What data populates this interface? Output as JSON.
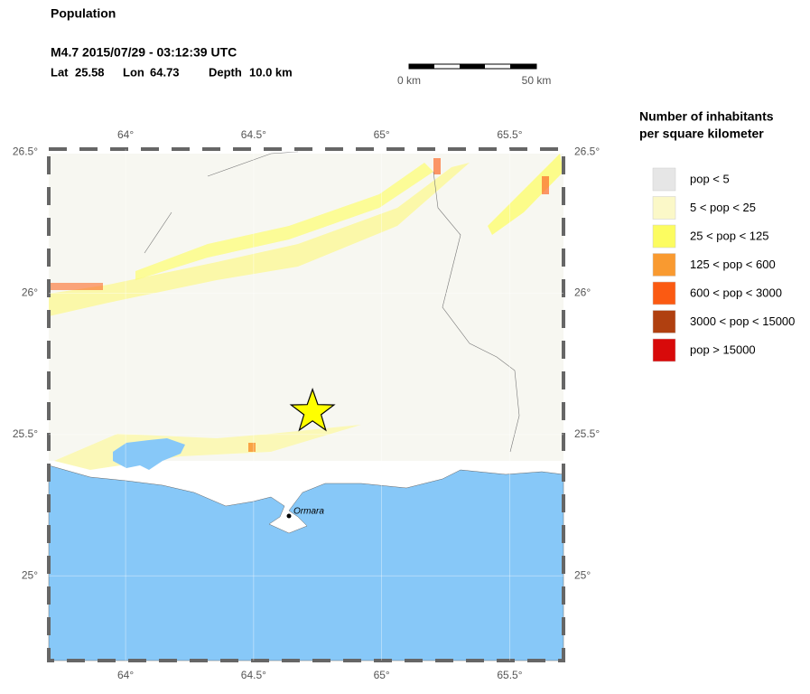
{
  "header": {
    "title": "Population",
    "event": "M4.7  2015/07/29 - 03:12:39 UTC",
    "lat_label": "Lat",
    "lat": 25.58,
    "lon_label": "Lon",
    "lon": 64.73,
    "depth_label": "Depth",
    "depth": "10.0 km"
  },
  "scale_bar": {
    "start": "0 km",
    "end": "50 km"
  },
  "map": {
    "xlim": [
      63.7,
      65.71
    ],
    "ylim": [
      24.7,
      26.51
    ],
    "xticks": [
      {
        "value": 64,
        "label": "64°"
      },
      {
        "value": 64.5,
        "label": "64.5°"
      },
      {
        "value": 65,
        "label": "65°"
      },
      {
        "value": 65.5,
        "label": "65.5°"
      }
    ],
    "yticks": [
      {
        "value": 25,
        "label": "25°"
      },
      {
        "value": 25.5,
        "label": "25.5°"
      },
      {
        "value": 26,
        "label": "26°"
      },
      {
        "value": 26.5,
        "label": "26.5°"
      }
    ],
    "city": "Ormara"
  },
  "legend": {
    "title": [
      "Number of inhabitants",
      "per square kilometer"
    ],
    "items": [
      {
        "label": "pop < 5",
        "color": "#e6e6e6"
      },
      {
        "label": "5 < pop < 25",
        "color": "#fbf8c8"
      },
      {
        "label": "25 < pop < 125",
        "color": "#fcfc60"
      },
      {
        "label": "125 < pop < 600",
        "color": "#f99a30"
      },
      {
        "label": "600 < pop < 3000",
        "color": "#fb5a12"
      },
      {
        "label": "3000 < pop < 15000",
        "color": "#b04010"
      },
      {
        "label": "pop > 15000",
        "color": "#d80a0a"
      }
    ]
  }
}
